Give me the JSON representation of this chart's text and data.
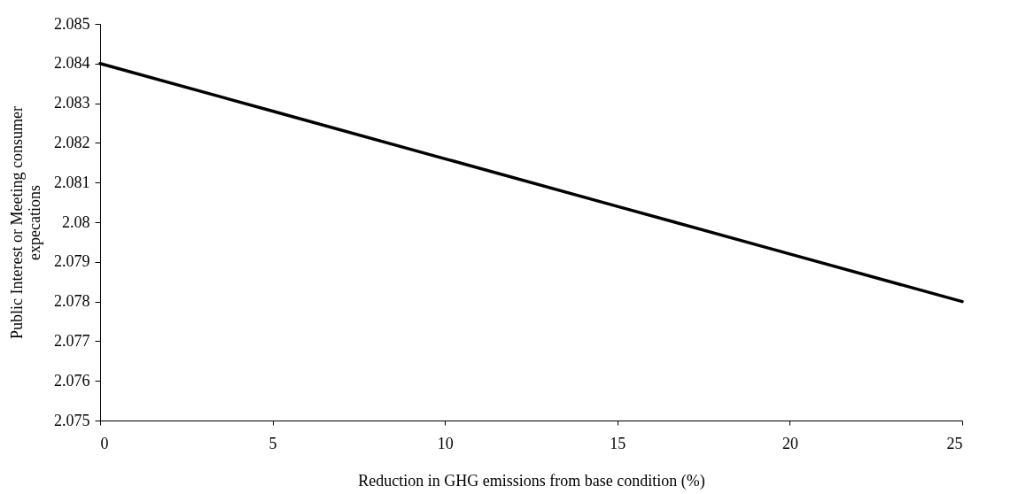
{
  "chart_data": {
    "type": "line",
    "xlabel": "Reduction in GHG emissions from base condition (%)",
    "ylabel": "Public Interest or Meeting consumer expecations",
    "x": [
      0,
      5,
      10,
      15,
      20,
      25
    ],
    "series": [
      {
        "color": "#000000",
        "values": [
          2.084,
          2.0828,
          2.0816,
          2.0804,
          2.0792,
          2.078
        ]
      }
    ],
    "xlim": [
      0,
      25
    ],
    "xticks": [
      0,
      5,
      10,
      15,
      20,
      25
    ],
    "ylim": [
      2.075,
      2.085
    ],
    "yticks": [
      2.075,
      2.076,
      2.077,
      2.078,
      2.079,
      2.08,
      2.081,
      2.082,
      2.083,
      2.084,
      2.085
    ],
    "grid": false,
    "marker": "none",
    "line_style": "solid"
  }
}
